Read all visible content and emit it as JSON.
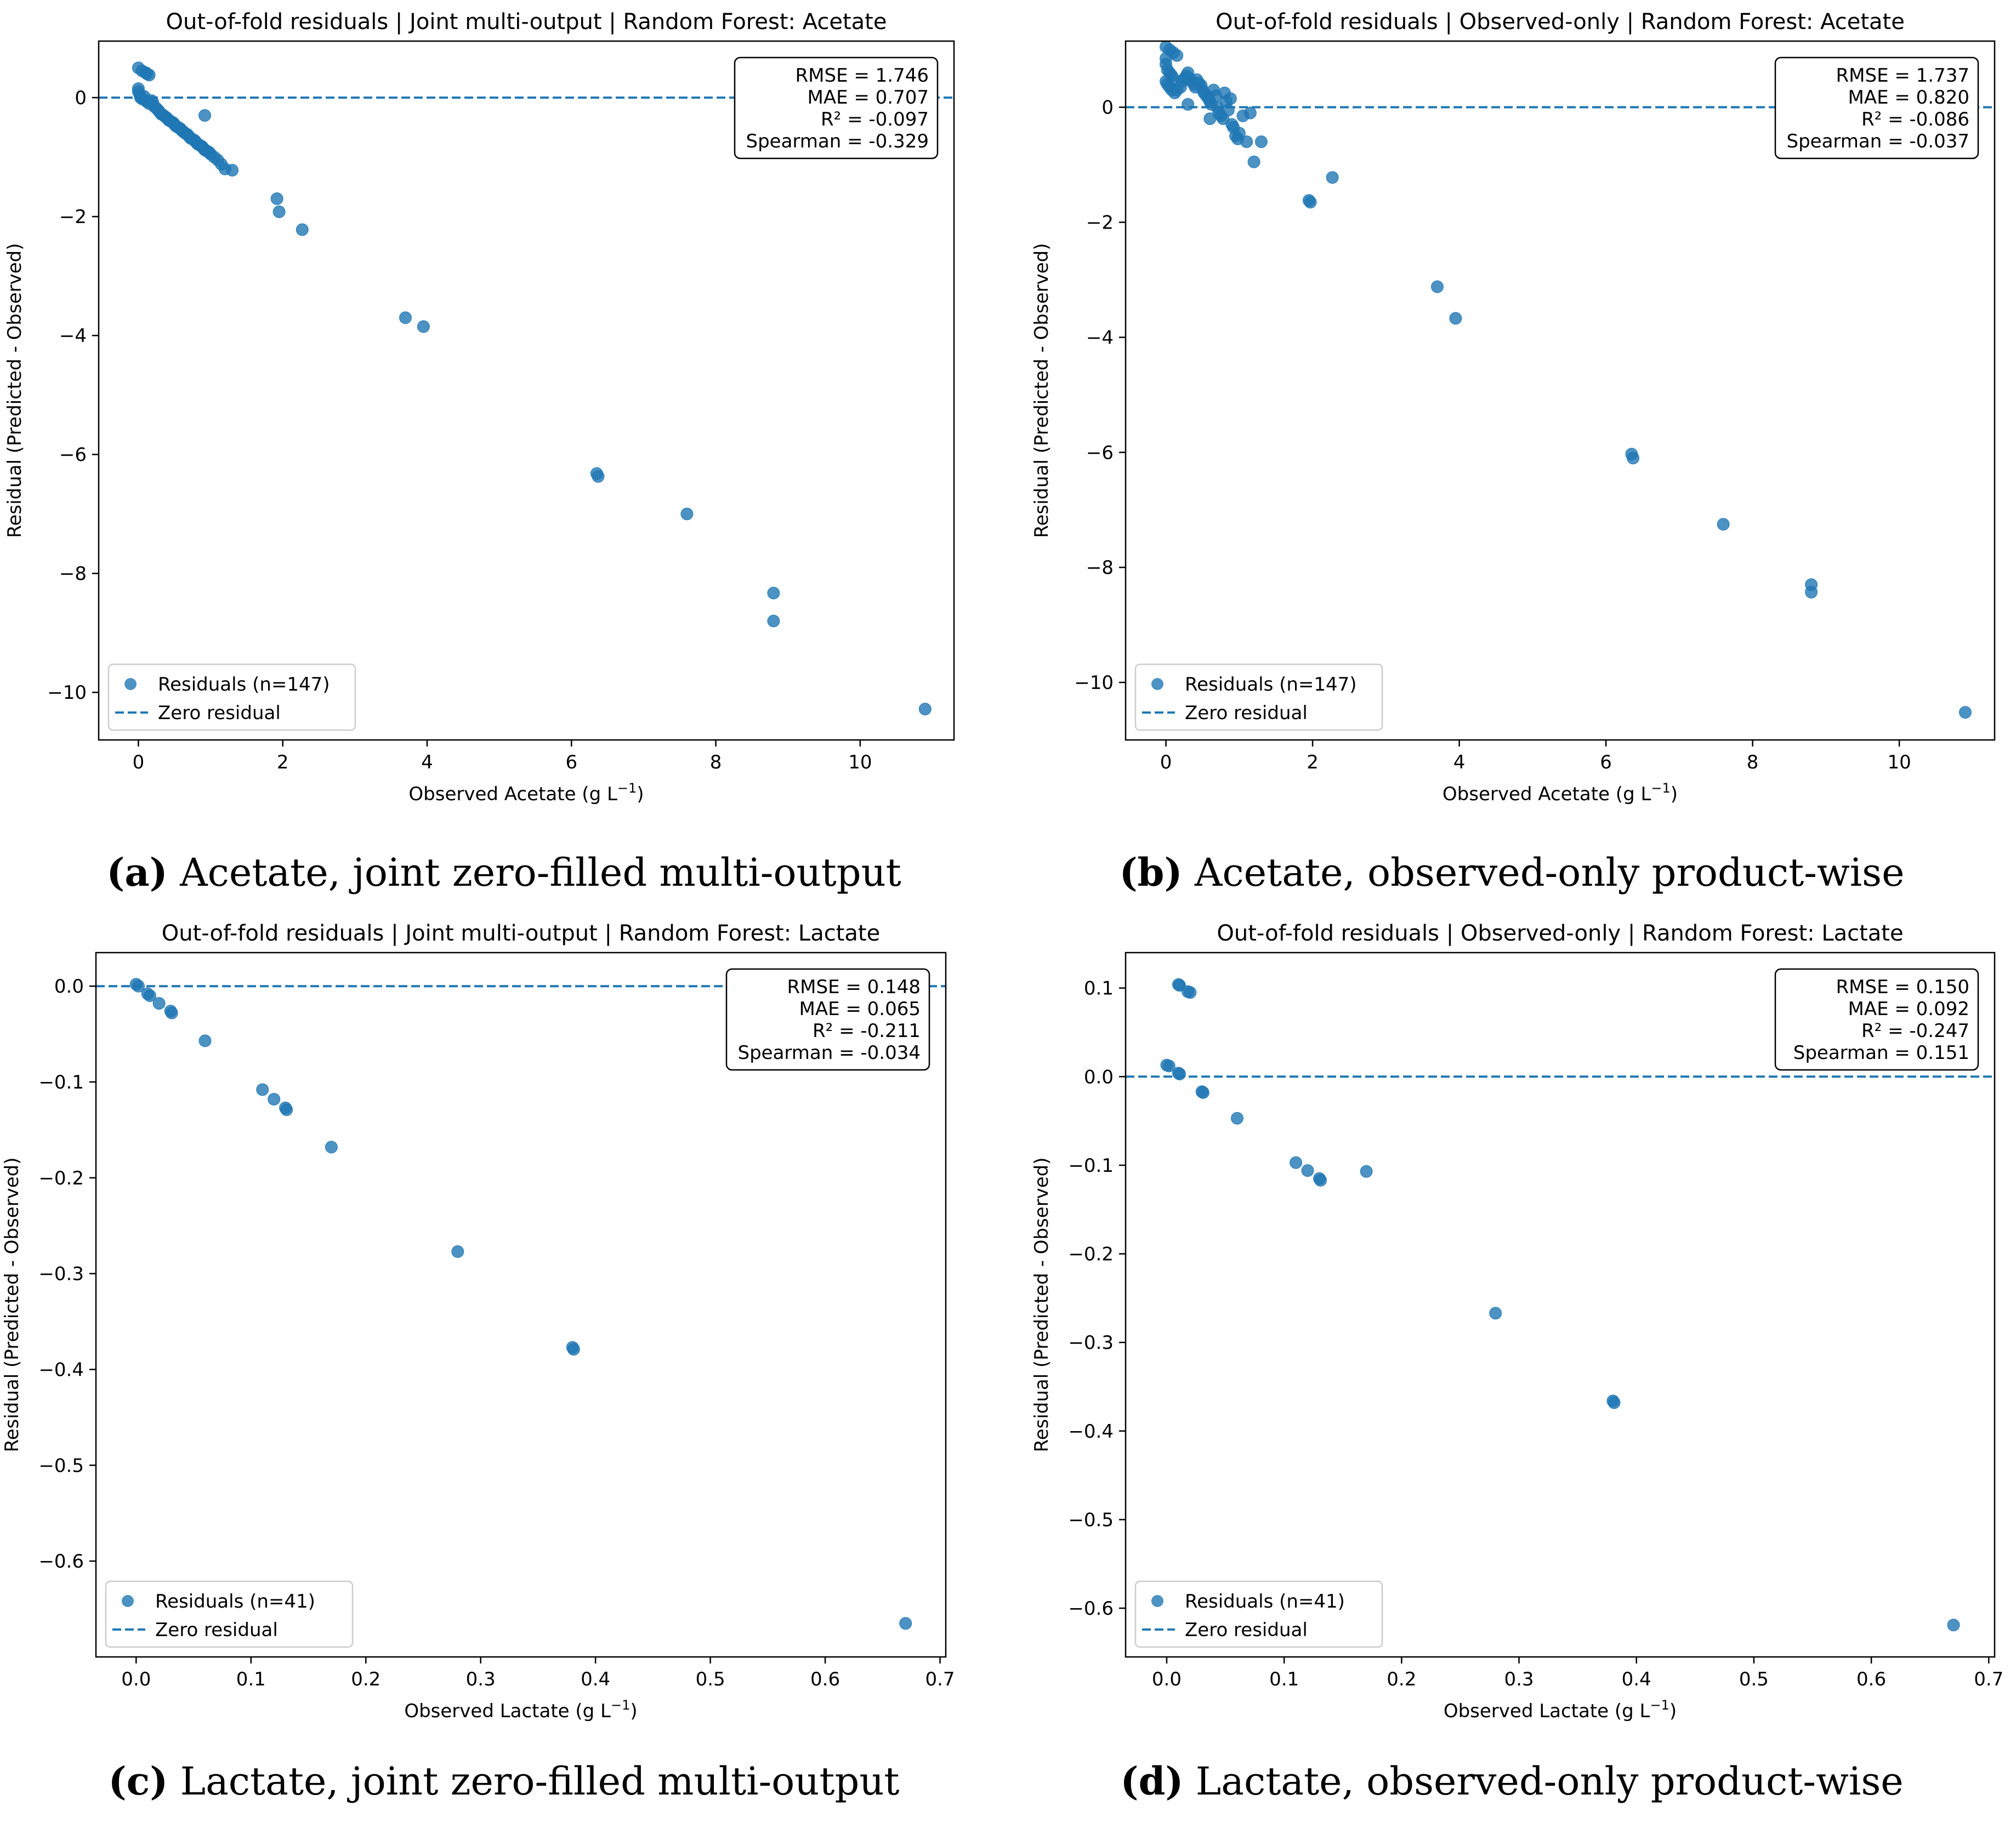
{
  "chart_data": [
    {
      "type": "scatter",
      "title": "Out-of-fold residuals | Joint multi-output | Random Forest: Acetate",
      "xlabel": "Observed Acetate (g L",
      "xlabel_sup": "−1",
      "xlabel_end": ")",
      "ylabel": "Residual (Predicted - Observed)",
      "xlim": [
        -0.55,
        11.3
      ],
      "ylim": [
        -10.8,
        0.95
      ],
      "xticks": [
        0,
        2,
        4,
        6,
        8,
        10
      ],
      "xtick_labels": [
        "0",
        "2",
        "4",
        "6",
        "8",
        "10"
      ],
      "yticks": [
        0,
        -2,
        -4,
        -6,
        -8,
        -10
      ],
      "ytick_labels": [
        "0",
        "−2",
        "−4",
        "−6",
        "−8",
        "−10"
      ],
      "zero_line": true,
      "grid": false,
      "legend": {
        "position": "bottom-left",
        "entries": [
          "Residuals (n=147)",
          "Zero residual"
        ]
      },
      "stats_box": [
        "RMSE = 1.746",
        "MAE = 0.707",
        "R² = -0.097",
        "Spearman = -0.329"
      ],
      "caption_label": "(a)",
      "caption_text": " Acetate, joint zero-filled multi-output",
      "points": [
        [
          0.0,
          0.5
        ],
        [
          0.05,
          0.45
        ],
        [
          0.1,
          0.42
        ],
        [
          0.12,
          0.4
        ],
        [
          0.15,
          0.38
        ],
        [
          0.0,
          0.15
        ],
        [
          0.0,
          0.1
        ],
        [
          0.02,
          0.05
        ],
        [
          0.03,
          0.0
        ],
        [
          0.05,
          -0.02
        ],
        [
          0.08,
          0.02
        ],
        [
          0.1,
          -0.05
        ],
        [
          0.12,
          -0.07
        ],
        [
          0.15,
          -0.1
        ],
        [
          0.18,
          -0.05
        ],
        [
          0.2,
          -0.08
        ],
        [
          0.22,
          -0.15
        ],
        [
          0.25,
          -0.18
        ],
        [
          0.28,
          -0.22
        ],
        [
          0.3,
          -0.25
        ],
        [
          0.32,
          -0.28
        ],
        [
          0.35,
          -0.3
        ],
        [
          0.38,
          -0.33
        ],
        [
          0.4,
          -0.35
        ],
        [
          0.42,
          -0.38
        ],
        [
          0.45,
          -0.4
        ],
        [
          0.48,
          -0.42
        ],
        [
          0.5,
          -0.45
        ],
        [
          0.52,
          -0.48
        ],
        [
          0.55,
          -0.5
        ],
        [
          0.58,
          -0.52
        ],
        [
          0.6,
          -0.55
        ],
        [
          0.62,
          -0.57
        ],
        [
          0.65,
          -0.6
        ],
        [
          0.68,
          -0.62
        ],
        [
          0.7,
          -0.65
        ],
        [
          0.72,
          -0.68
        ],
        [
          0.75,
          -0.7
        ],
        [
          0.78,
          -0.72
        ],
        [
          0.8,
          -0.75
        ],
        [
          0.82,
          -0.78
        ],
        [
          0.85,
          -0.8
        ],
        [
          0.88,
          -0.82
        ],
        [
          0.9,
          -0.85
        ],
        [
          0.92,
          -0.88
        ],
        [
          0.95,
          -0.9
        ],
        [
          0.98,
          -0.92
        ],
        [
          1.0,
          -0.95
        ],
        [
          1.05,
          -1.0
        ],
        [
          1.1,
          -1.05
        ],
        [
          1.15,
          -1.12
        ],
        [
          1.2,
          -1.2
        ],
        [
          1.3,
          -1.22
        ],
        [
          0.92,
          -0.3
        ],
        [
          1.92,
          -1.7
        ],
        [
          1.95,
          -1.92
        ],
        [
          2.27,
          -2.22
        ],
        [
          3.7,
          -3.7
        ],
        [
          3.95,
          -3.85
        ],
        [
          6.35,
          -6.32
        ],
        [
          6.37,
          -6.37
        ],
        [
          7.6,
          -7.0
        ],
        [
          8.8,
          -8.33
        ],
        [
          8.8,
          -8.8
        ],
        [
          10.9,
          -10.28
        ]
      ]
    },
    {
      "type": "scatter",
      "title": "Out-of-fold residuals | Observed-only | Random Forest: Acetate",
      "xlabel": "Observed Acetate (g L",
      "xlabel_sup": "−1",
      "xlabel_end": ")",
      "ylabel": "Residual (Predicted - Observed)",
      "xlim": [
        -0.55,
        11.3
      ],
      "ylim": [
        -11.0,
        1.15
      ],
      "xticks": [
        0,
        2,
        4,
        6,
        8,
        10
      ],
      "xtick_labels": [
        "0",
        "2",
        "4",
        "6",
        "8",
        "10"
      ],
      "yticks": [
        0,
        -2,
        -4,
        -6,
        -8,
        -10
      ],
      "ytick_labels": [
        "0",
        "−2",
        "−4",
        "−6",
        "−8",
        "−10"
      ],
      "zero_line": true,
      "grid": false,
      "legend": {
        "position": "bottom-left",
        "entries": [
          "Residuals (n=147)",
          "Zero residual"
        ]
      },
      "stats_box": [
        "RMSE = 1.737",
        "MAE = 0.820",
        "R² = -0.086",
        "Spearman = -0.037"
      ],
      "caption_label": "(b)",
      "caption_text": " Acetate, observed-only product-wise",
      "points": [
        [
          0.0,
          1.05
        ],
        [
          0.05,
          1.0
        ],
        [
          0.1,
          0.95
        ],
        [
          0.15,
          0.9
        ],
        [
          0.0,
          0.85
        ],
        [
          0.0,
          0.75
        ],
        [
          0.02,
          0.65
        ],
        [
          0.05,
          0.6
        ],
        [
          0.08,
          0.55
        ],
        [
          0.1,
          0.5
        ],
        [
          0.0,
          0.45
        ],
        [
          0.02,
          0.4
        ],
        [
          0.05,
          0.35
        ],
        [
          0.08,
          0.3
        ],
        [
          0.12,
          0.25
        ],
        [
          0.15,
          0.3
        ],
        [
          0.2,
          0.35
        ],
        [
          0.22,
          0.45
        ],
        [
          0.25,
          0.5
        ],
        [
          0.28,
          0.55
        ],
        [
          0.3,
          0.6
        ],
        [
          0.32,
          0.5
        ],
        [
          0.35,
          0.45
        ],
        [
          0.38,
          0.4
        ],
        [
          0.4,
          0.35
        ],
        [
          0.42,
          0.48
        ],
        [
          0.45,
          0.42
        ],
        [
          0.48,
          0.38
        ],
        [
          0.5,
          0.3
        ],
        [
          0.52,
          0.25
        ],
        [
          0.55,
          0.2
        ],
        [
          0.58,
          0.15
        ],
        [
          0.6,
          0.1
        ],
        [
          0.62,
          0.05
        ],
        [
          0.65,
          0.3
        ],
        [
          0.68,
          0.2
        ],
        [
          0.7,
          0.0
        ],
        [
          0.72,
          -0.1
        ],
        [
          0.75,
          -0.15
        ],
        [
          0.78,
          -0.2
        ],
        [
          0.8,
          0.25
        ],
        [
          0.82,
          0.1
        ],
        [
          0.85,
          -0.05
        ],
        [
          0.88,
          0.15
        ],
        [
          0.9,
          -0.3
        ],
        [
          0.92,
          -0.35
        ],
        [
          0.95,
          -0.5
        ],
        [
          0.98,
          -0.55
        ],
        [
          1.0,
          -0.45
        ],
        [
          1.05,
          -0.15
        ],
        [
          1.1,
          -0.6
        ],
        [
          1.15,
          -0.1
        ],
        [
          1.2,
          -0.95
        ],
        [
          1.3,
          -0.6
        ],
        [
          0.3,
          0.05
        ],
        [
          0.6,
          -0.2
        ],
        [
          1.95,
          -1.62
        ],
        [
          1.97,
          -1.65
        ],
        [
          2.27,
          -1.22
        ],
        [
          3.7,
          -3.12
        ],
        [
          3.95,
          -3.67
        ],
        [
          6.35,
          -6.03
        ],
        [
          6.37,
          -6.1
        ],
        [
          7.6,
          -7.25
        ],
        [
          8.8,
          -8.3
        ],
        [
          8.8,
          -8.43
        ],
        [
          10.9,
          -10.52
        ]
      ]
    },
    {
      "type": "scatter",
      "title": "Out-of-fold residuals | Joint multi-output | Random Forest: Lactate",
      "xlabel": "Observed Lactate (g L",
      "xlabel_sup": "−1",
      "xlabel_end": ")",
      "ylabel": "Residual (Predicted - Observed)",
      "xlim": [
        -0.035,
        0.705
      ],
      "ylim": [
        -0.7,
        0.035
      ],
      "xticks": [
        0.0,
        0.1,
        0.2,
        0.3,
        0.4,
        0.5,
        0.6,
        0.7
      ],
      "xtick_labels": [
        "0.0",
        "0.1",
        "0.2",
        "0.3",
        "0.4",
        "0.5",
        "0.6",
        "0.7"
      ],
      "yticks": [
        0.0,
        -0.1,
        -0.2,
        -0.3,
        -0.4,
        -0.5,
        -0.6
      ],
      "ytick_labels": [
        "0.0",
        "−0.1",
        "−0.2",
        "−0.3",
        "−0.4",
        "−0.5",
        "−0.6"
      ],
      "zero_line": true,
      "grid": false,
      "legend": {
        "position": "bottom-left",
        "entries": [
          "Residuals (n=41)",
          "Zero residual"
        ]
      },
      "stats_box": [
        "RMSE = 0.148",
        "MAE = 0.065",
        "R² = -0.211",
        "Spearman = -0.034"
      ],
      "caption_label": "(c)",
      "caption_text": " Lactate, joint zero-filled multi-output",
      "points": [
        [
          0.0,
          0.002
        ],
        [
          0.002,
          0.0
        ],
        [
          0.01,
          -0.008
        ],
        [
          0.012,
          -0.01
        ],
        [
          0.02,
          -0.018
        ],
        [
          0.03,
          -0.026
        ],
        [
          0.031,
          -0.028
        ],
        [
          0.06,
          -0.057
        ],
        [
          0.11,
          -0.108
        ],
        [
          0.12,
          -0.118
        ],
        [
          0.13,
          -0.127
        ],
        [
          0.131,
          -0.129
        ],
        [
          0.17,
          -0.168
        ],
        [
          0.28,
          -0.277
        ],
        [
          0.38,
          -0.377
        ],
        [
          0.381,
          -0.379
        ],
        [
          0.67,
          -0.665
        ]
      ]
    },
    {
      "type": "scatter",
      "title": "Out-of-fold residuals | Observed-only | Random Forest: Lactate",
      "xlabel": "Observed Lactate (g L",
      "xlabel_sup": "−1",
      "xlabel_end": ")",
      "ylabel": "Residual (Predicted - Observed)",
      "xlim": [
        -0.035,
        0.705
      ],
      "ylim": [
        -0.655,
        0.14
      ],
      "xticks": [
        0.0,
        0.1,
        0.2,
        0.3,
        0.4,
        0.5,
        0.6,
        0.7
      ],
      "xtick_labels": [
        "0.0",
        "0.1",
        "0.2",
        "0.3",
        "0.4",
        "0.5",
        "0.6",
        "0.7"
      ],
      "yticks": [
        0.1,
        0.0,
        -0.1,
        -0.2,
        -0.3,
        -0.4,
        -0.5,
        -0.6
      ],
      "ytick_labels": [
        "0.1",
        "0.0",
        "−0.1",
        "−0.2",
        "−0.3",
        "−0.4",
        "−0.5",
        "−0.6"
      ],
      "zero_line": true,
      "grid": false,
      "legend": {
        "position": "bottom-left",
        "entries": [
          "Residuals (n=41)",
          "Zero residual"
        ]
      },
      "stats_box": [
        "RMSE = 0.150",
        "MAE = 0.092",
        "R² = -0.247",
        "Spearman = 0.151"
      ],
      "caption_label": "(d)",
      "caption_text": " Lactate, observed-only product-wise",
      "points": [
        [
          0.0,
          0.013
        ],
        [
          0.002,
          0.012
        ],
        [
          0.01,
          0.104
        ],
        [
          0.011,
          0.103
        ],
        [
          0.018,
          0.096
        ],
        [
          0.02,
          0.095
        ],
        [
          0.01,
          0.004
        ],
        [
          0.011,
          0.003
        ],
        [
          0.03,
          -0.017
        ],
        [
          0.031,
          -0.018
        ],
        [
          0.06,
          -0.047
        ],
        [
          0.11,
          -0.097
        ],
        [
          0.12,
          -0.106
        ],
        [
          0.13,
          -0.115
        ],
        [
          0.131,
          -0.117
        ],
        [
          0.17,
          -0.107
        ],
        [
          0.28,
          -0.267
        ],
        [
          0.38,
          -0.366
        ],
        [
          0.381,
          -0.368
        ],
        [
          0.67,
          -0.619
        ]
      ]
    }
  ],
  "colors": {
    "marker": "#1f77b4",
    "zero_line": "#1f77b4",
    "axes": "#000000"
  }
}
